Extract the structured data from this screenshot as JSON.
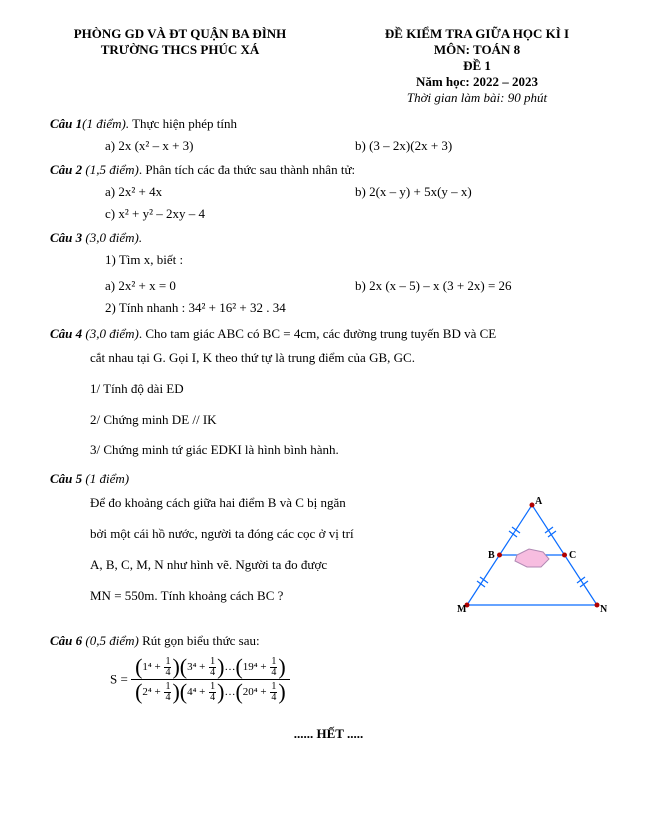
{
  "header": {
    "dept": "PHÒNG GD VÀ ĐT QUẬN BA ĐÌNH",
    "school": "TRƯỜNG THCS PHÚC XÁ",
    "exam_title": "ĐỀ KIỂM TRA GIỮA HỌC KÌ I",
    "subject": "MÔN: TOÁN 8",
    "exam_no": "ĐỀ 1",
    "year": "Năm học: 2022 – 2023",
    "duration": "Thời gian làm bài: 90 phút"
  },
  "q1": {
    "title_bold": "Câu 1",
    "title_paren": "(1 điểm).",
    "title_rest": " Thực hiện phép tính",
    "a": "a) 2x (x² – x  + 3)",
    "b": "b) (3 – 2x)(2x + 3)"
  },
  "q2": {
    "title_bold": "Câu 2 ",
    "title_paren": "(1,5 điểm)",
    "title_rest": ". Phân tích các đa thức sau thành nhân tử:",
    "a": "a) 2x² + 4x",
    "b": "b) 2(x – y) + 5x(y – x)",
    "c": "c) x² + y² – 2xy – 4"
  },
  "q3": {
    "title_bold": "Câu 3 ",
    "title_paren": "(3,0 điểm).",
    "l1": "1) Tìm x, biết :",
    "a": "a) 2x² + x = 0",
    "b": "b) 2x (x – 5) – x (3 + 2x) = 26",
    "l2": "2) Tính nhanh :  34² + 16² + 32 . 34"
  },
  "q4": {
    "title_bold": "Câu 4 ",
    "title_paren": "(3,0 điểm)",
    "title_rest": ". Cho tam giác ABC có BC = 4cm, các đường trung tuyến BD và CE",
    "p1": "cắt nhau tại G. Gọi I, K theo thứ tự là trung điểm của GB, GC.",
    "p2": "1/ Tính độ dài ED",
    "p3": "2/ Chứng minh DE // IK",
    "p4": "3/ Chứng minh tứ giác EDKI là hình bình hành."
  },
  "q5": {
    "title_bold": "Câu 5 ",
    "title_paren": "(1 điểm)",
    "p1": "Để đo khoảng cách giữa hai điểm B và C  bị ngăn",
    "p2": "bởi một cái hồ nước, người ta đóng các cọc ở vị trí",
    "p3": "A, B, C, M, N như hình vẽ. Người ta đo được",
    "p4": "MN = 550m. Tính khoảng cách BC ?",
    "labels": {
      "A": "A",
      "B": "B",
      "C": "C",
      "M": "M",
      "N": "N"
    },
    "colors": {
      "line": "#0a6cff",
      "marker": "#0a6cff",
      "node": "#b00000",
      "lake_fill": "#f7bde0",
      "lake_stroke": "#b088b3"
    }
  },
  "q6": {
    "title_bold": "Câu 6 ",
    "title_paren": "(0,5 điểm)",
    "title_rest": " Rút gọn biểu thức sau:",
    "lhs": "S =",
    "num_terms": [
      "1⁴",
      "3⁴",
      "19⁴"
    ],
    "den_terms": [
      "2⁴",
      "4⁴",
      "20⁴"
    ],
    "plus_frac_num": "1",
    "plus_frac_den": "4",
    "dots": "…"
  },
  "end": "...... HẾT ....."
}
